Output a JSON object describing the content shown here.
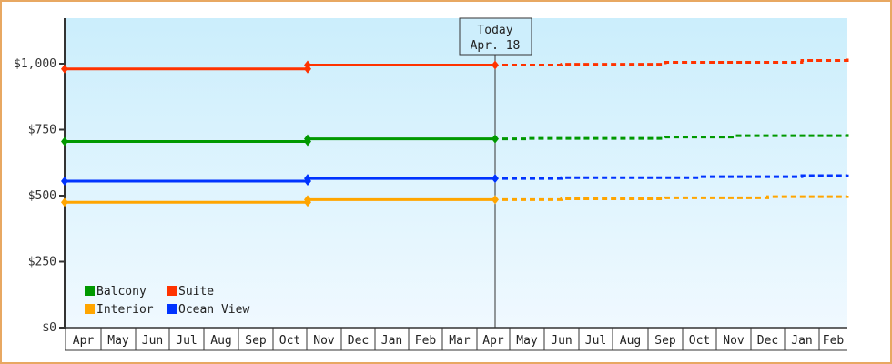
{
  "chart_data": {
    "type": "line",
    "title": "",
    "xlabel": "",
    "ylabel": "",
    "ylim": [
      0,
      1175
    ],
    "y_ticks": [
      "$0",
      "$250",
      "$500",
      "$750",
      "$1,000"
    ],
    "y_tick_values": [
      0,
      250,
      500,
      750,
      1000
    ],
    "categories": [
      "Apr",
      "May",
      "Jun",
      "Jul",
      "Aug",
      "Sep",
      "Oct",
      "Nov",
      "Dec",
      "Jan",
      "Feb",
      "Mar",
      "Apr",
      "May",
      "Jun",
      "Jul",
      "Aug",
      "Sep",
      "Oct",
      "Nov",
      "Dec",
      "Jan",
      "Feb"
    ],
    "today_marker": {
      "line1": "Today",
      "line2": "Apr. 18"
    },
    "legend_position": "bottom-left inside plot",
    "grid": false,
    "series": [
      {
        "name": "Suite",
        "color": "#ff3300",
        "historical": [
          {
            "x": "Apr",
            "y": 980
          },
          {
            "x": "Nov",
            "y": 980
          },
          {
            "x": "Nov",
            "y": 995
          },
          {
            "x": "Apr (today)",
            "y": 995
          }
        ],
        "forecast": [
          {
            "x": "Apr (today)",
            "y": 995
          },
          {
            "x": "Jun",
            "y": 998
          },
          {
            "x": "Sep",
            "y": 1005
          },
          {
            "x": "Jan",
            "y": 1012
          },
          {
            "x": "Feb",
            "y": 1020
          }
        ]
      },
      {
        "name": "Balcony",
        "color": "#009900",
        "historical": [
          {
            "x": "Apr",
            "y": 705
          },
          {
            "x": "Nov",
            "y": 705
          },
          {
            "x": "Nov",
            "y": 715
          },
          {
            "x": "Apr (today)",
            "y": 715
          }
        ],
        "forecast": [
          {
            "x": "Apr (today)",
            "y": 715
          },
          {
            "x": "May",
            "y": 717
          },
          {
            "x": "Sep",
            "y": 722
          },
          {
            "x": "Nov",
            "y": 727
          },
          {
            "x": "Feb",
            "y": 733
          }
        ]
      },
      {
        "name": "Ocean View",
        "color": "#0033ff",
        "historical": [
          {
            "x": "Apr",
            "y": 555
          },
          {
            "x": "Nov",
            "y": 555
          },
          {
            "x": "Nov",
            "y": 565
          },
          {
            "x": "Apr (today)",
            "y": 565
          }
        ],
        "forecast": [
          {
            "x": "Apr (today)",
            "y": 565
          },
          {
            "x": "Jun",
            "y": 568
          },
          {
            "x": "Oct",
            "y": 572
          },
          {
            "x": "Jan",
            "y": 576
          },
          {
            "x": "Feb",
            "y": 580
          }
        ]
      },
      {
        "name": "Interior",
        "color": "#ffa500",
        "historical": [
          {
            "x": "Apr",
            "y": 475
          },
          {
            "x": "Nov",
            "y": 475
          },
          {
            "x": "Nov",
            "y": 485
          },
          {
            "x": "Apr (today)",
            "y": 485
          }
        ],
        "forecast": [
          {
            "x": "Apr (today)",
            "y": 485
          },
          {
            "x": "Jun",
            "y": 488
          },
          {
            "x": "Sep",
            "y": 492
          },
          {
            "x": "Dec",
            "y": 496
          },
          {
            "x": "Feb",
            "y": 500
          }
        ]
      }
    ]
  },
  "legend": {
    "items": [
      {
        "label": "Balcony",
        "color": "#009900"
      },
      {
        "label": "Suite",
        "color": "#ff3300"
      },
      {
        "label": "Interior",
        "color": "#ffa500"
      },
      {
        "label": "Ocean View",
        "color": "#0033ff"
      }
    ]
  }
}
